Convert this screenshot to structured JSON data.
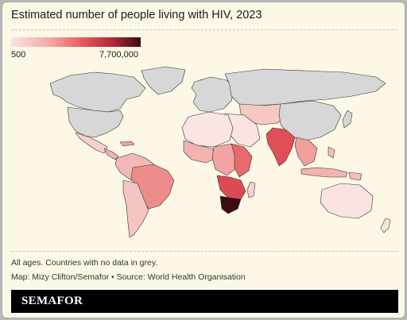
{
  "title": "Estimated number of people living with HIV, 2023",
  "legend": {
    "min_label": "500",
    "max_label": "7,700,000",
    "min_value": 500,
    "max_value": 7700000,
    "colors": [
      "#fbe3e1",
      "#f3a9a6",
      "#e85a5e",
      "#b02a36",
      "#3b0d12"
    ]
  },
  "colors": {
    "no_data": "#d7d7d7",
    "background": "#fdf8e6",
    "ocean": "#fdf8e6"
  },
  "footer": {
    "note": "All ages. Countries with no data in grey.",
    "source": "Map: Mizy Clifton/Semafor • Source: World Health Organisation",
    "brand": "SEMAFOR"
  }
}
